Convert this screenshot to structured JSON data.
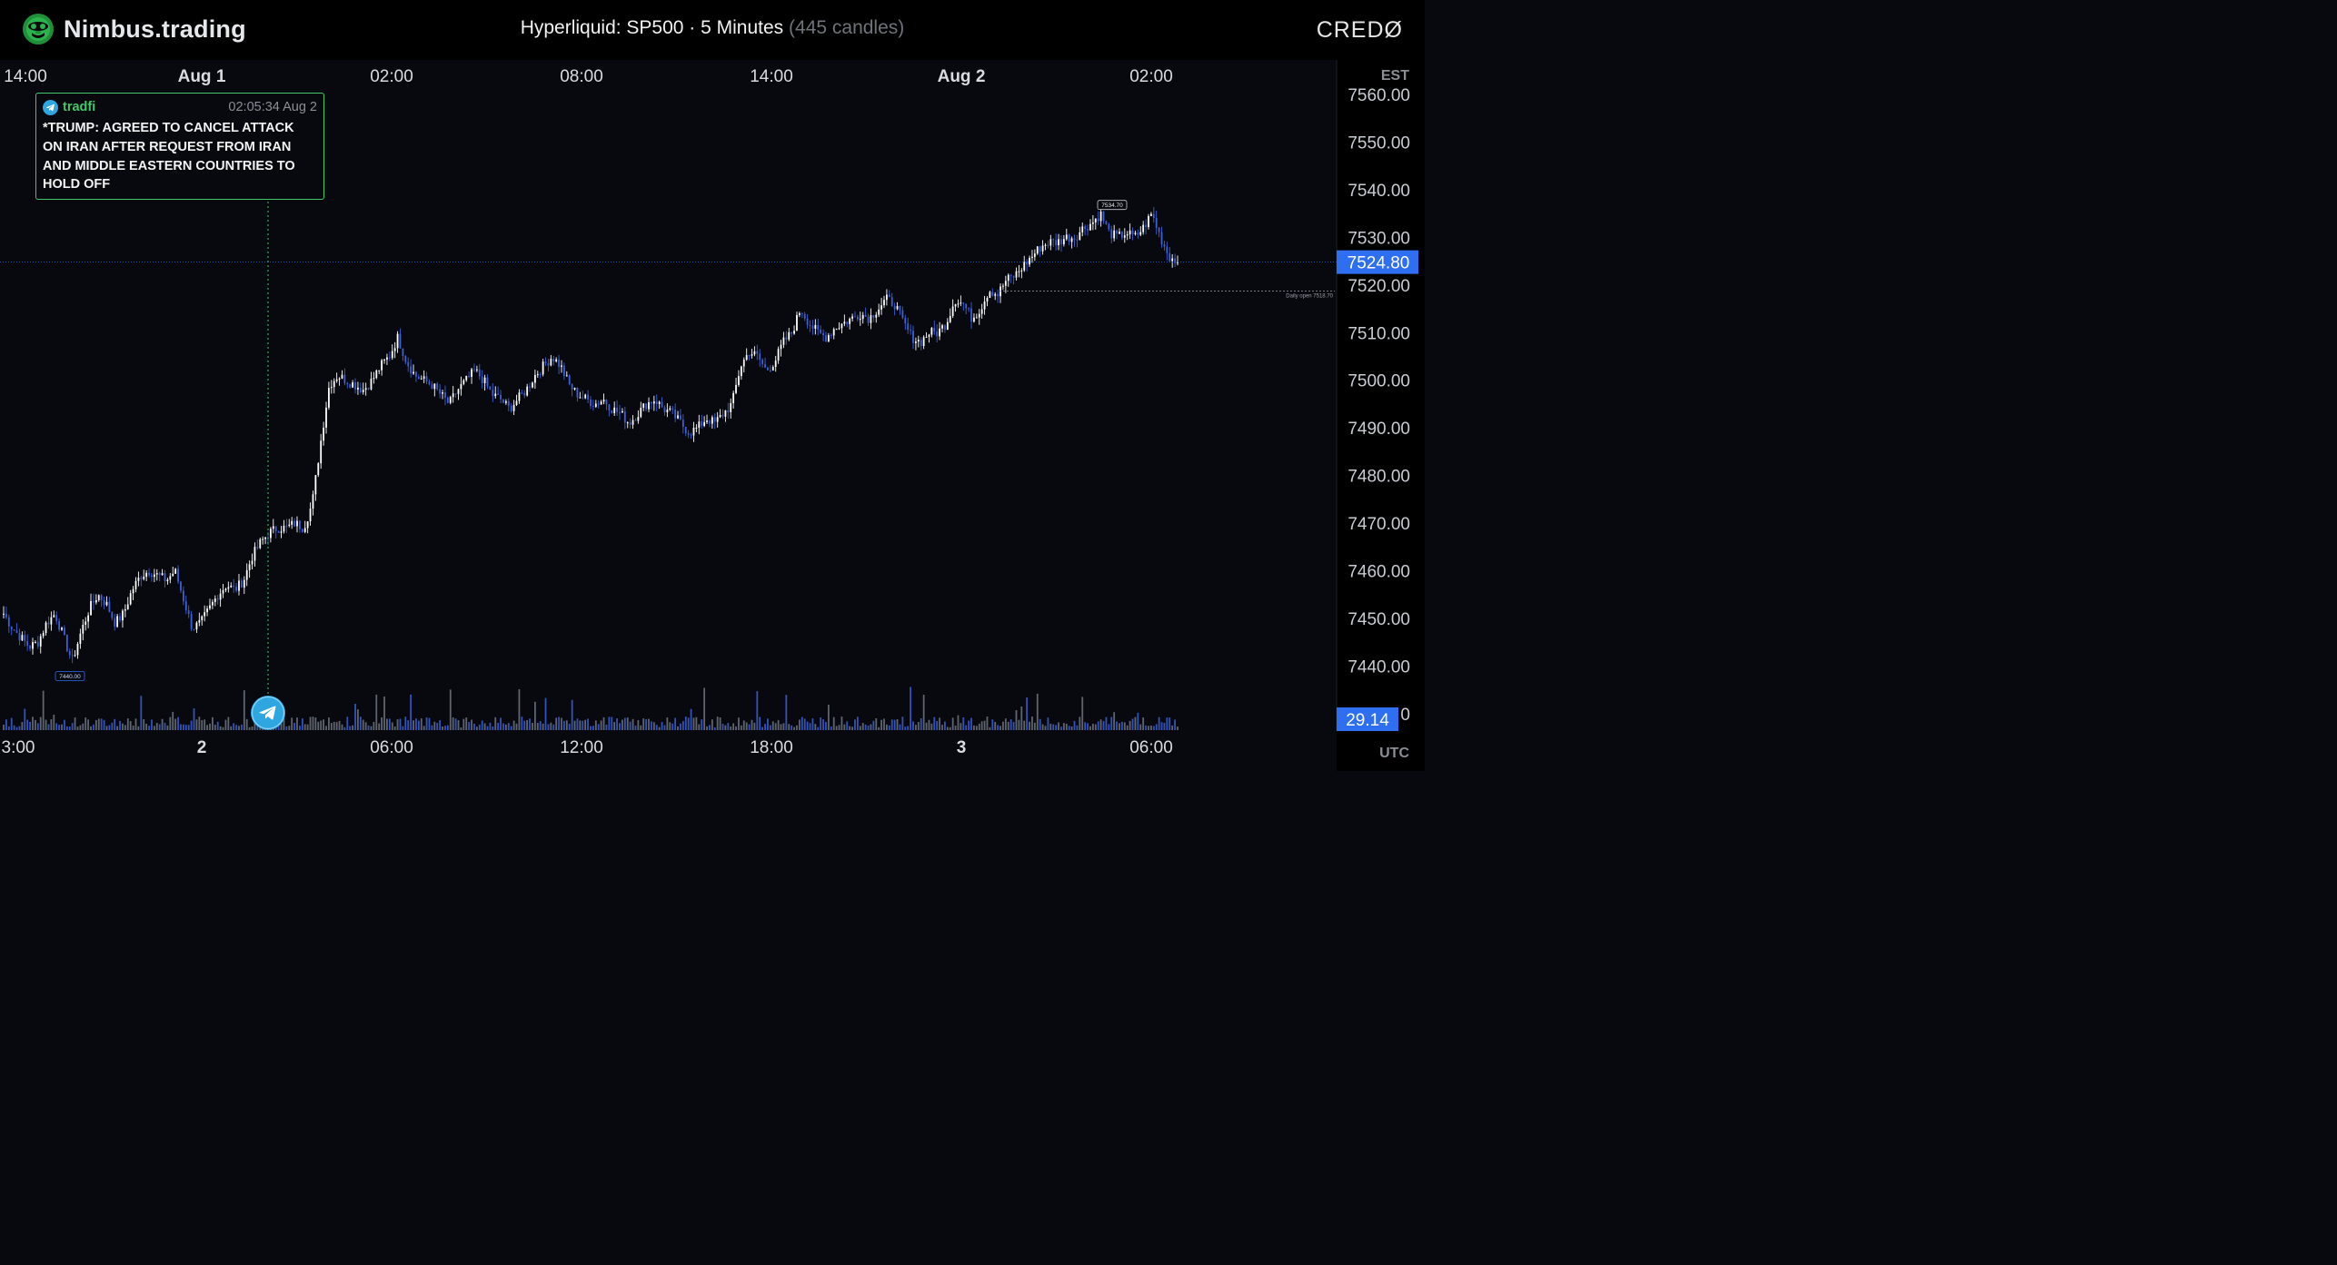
{
  "header": {
    "brand_name": "Nimbus.trading",
    "title_main": "Hyperliquid: SP500 · 5 Minutes",
    "title_candles": "(445 candles)",
    "right_logo_text": "CREDØ",
    "brand_icon": "gorilla-head-icon"
  },
  "news_card": {
    "channel": "tradfi",
    "timestamp": "02:05:34 Aug 2",
    "text": "*TRUMP: AGREED TO CANCEL ATTACK ON IRAN AFTER REQUEST FROM IRAN AND MIDDLE EASTERN COUNTRIES TO HOLD OFF",
    "icon": "telegram-icon"
  },
  "colors": {
    "background": "#07090e",
    "candle": "#ffffff",
    "candle_down": "#3d5fd9",
    "price_tag": "#2d6ff0",
    "news_accent": "#43c768",
    "volume": "#6f7580"
  },
  "chart_data": {
    "type": "candlestick",
    "symbol": "SP500",
    "exchange": "Hyperliquid",
    "interval": "5 Minutes",
    "candle_count": 445,
    "y_ticks": [
      "7560.00",
      "7550.00",
      "7540.00",
      "7530.00",
      "7520.00",
      "7510.00",
      "7500.00",
      "7490.00",
      "7480.00",
      "7470.00",
      "7460.00",
      "7450.00",
      "7440.00"
    ],
    "ylim": [
      7434,
      7563
    ],
    "top_axis_label": "EST",
    "bottom_axis_label": "UTC",
    "top_axis_ticks": [
      {
        "label": "14:00",
        "bold": false
      },
      {
        "label": "Aug 1",
        "bold": true
      },
      {
        "label": "02:00",
        "bold": false
      },
      {
        "label": "08:00",
        "bold": false
      },
      {
        "label": "14:00",
        "bold": false
      },
      {
        "label": "Aug 2",
        "bold": true
      },
      {
        "label": "02:00",
        "bold": false
      }
    ],
    "bottom_axis_ticks": [
      {
        "label": "3:00",
        "bold": false
      },
      {
        "label": "2",
        "bold": true
      },
      {
        "label": "06:00",
        "bold": false
      },
      {
        "label": "12:00",
        "bold": false
      },
      {
        "label": "18:00",
        "bold": false
      },
      {
        "label": "3",
        "bold": true
      },
      {
        "label": "06:00",
        "bold": false
      }
    ],
    "last_price": "7524.80",
    "last_volume": "29.14",
    "volume_axis_partial_tick": "0",
    "high_label": "7534.70",
    "low_label": "7440.00",
    "daily_open_label": "Daily open 7518.70",
    "daily_open": 7518.7,
    "close_series": [
      7451,
      7448,
      7446,
      7444,
      7445,
      7449,
      7451,
      7446,
      7441,
      7447,
      7452,
      7455,
      7453,
      7449,
      7451,
      7456,
      7459,
      7460,
      7459,
      7458,
      7460,
      7454,
      7448,
      7449,
      7452,
      7455,
      7457,
      7456,
      7458,
      7463,
      7466,
      7468,
      7469,
      7469,
      7470,
      7469,
      7474,
      7487,
      7499,
      7501,
      7500,
      7499,
      7498,
      7500,
      7503,
      7505,
      7509,
      7504,
      7501,
      7500,
      7499,
      7497,
      7495,
      7498,
      7500,
      7502,
      7500,
      7497,
      7496,
      7494,
      7496,
      7498,
      7501,
      7503,
      7505,
      7503,
      7499,
      7497,
      7496,
      7495,
      7496,
      7494,
      7493,
      7491,
      7493,
      7495,
      7496,
      7494,
      7493,
      7491,
      7489,
      7490,
      7492,
      7491,
      7493,
      7495,
      7503,
      7506,
      7505,
      7502,
      7504,
      7508,
      7510,
      7515,
      7512,
      7510,
      7509,
      7511,
      7512,
      7513,
      7514,
      7513,
      7515,
      7517,
      7516,
      7512,
      7509,
      7508,
      7510,
      7510,
      7512,
      7517,
      7516,
      7513,
      7515,
      7519,
      7518,
      7521,
      7522,
      7524,
      7526,
      7528,
      7529,
      7529,
      7530,
      7530,
      7532,
      7533,
      7535,
      7531,
      7530,
      7531,
      7530,
      7532,
      7535,
      7530,
      7526,
      7524.8
    ]
  }
}
